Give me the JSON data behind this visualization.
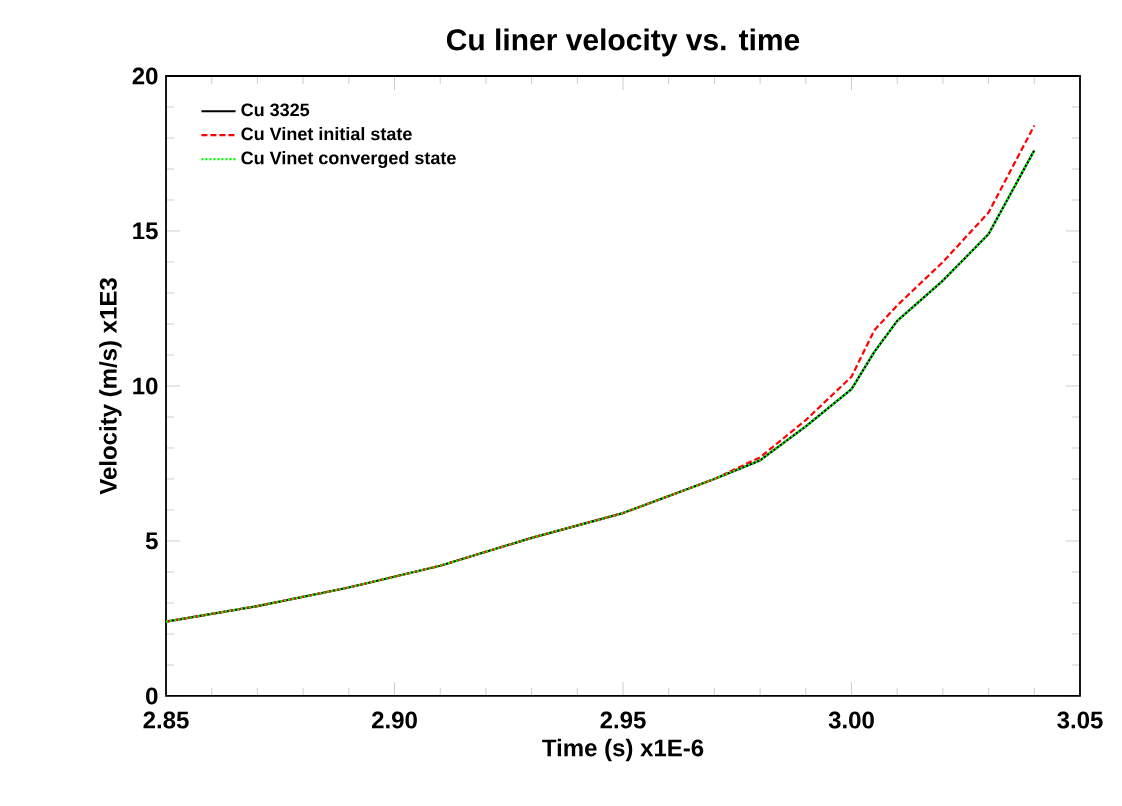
{
  "chart_data": {
    "type": "line",
    "title": "Cu liner velocity vs. time",
    "xlabel": "Time  (s) x1E-6",
    "ylabel": "Velocity  (m/s) x1E3",
    "xlim": [
      2.85,
      3.05
    ],
    "ylim": [
      0,
      20
    ],
    "xticks": [
      {
        "value": 2.85,
        "label": "2.85"
      },
      {
        "value": 2.9,
        "label": "2.90"
      },
      {
        "value": 2.95,
        "label": "2.95"
      },
      {
        "value": 3.0,
        "label": "3.00"
      },
      {
        "value": 3.05,
        "label": "3.05"
      }
    ],
    "yticks": [
      0,
      5,
      10,
      15,
      20
    ],
    "legend": "top left",
    "grid": false,
    "marker": "none",
    "series": [
      {
        "name": "Cu 3325",
        "color": "#000000",
        "line_style": "solid",
        "x": [
          2.85,
          2.87,
          2.89,
          2.91,
          2.93,
          2.95,
          2.97,
          2.98,
          2.99,
          3.0,
          3.005,
          3.01,
          3.02,
          3.03,
          3.04
        ],
        "values": [
          2.4,
          2.9,
          3.5,
          4.2,
          5.1,
          5.9,
          7.0,
          7.6,
          8.7,
          9.9,
          11.1,
          12.1,
          13.4,
          14.9,
          17.6
        ]
      },
      {
        "name": "Cu Vinet initial state",
        "color": "#ff0000",
        "line_style": "dashed",
        "x": [
          2.85,
          2.87,
          2.89,
          2.91,
          2.93,
          2.95,
          2.97,
          2.98,
          2.99,
          3.0,
          3.005,
          3.01,
          3.02,
          3.03,
          3.04
        ],
        "values": [
          2.4,
          2.9,
          3.5,
          4.2,
          5.1,
          5.9,
          7.0,
          7.7,
          8.9,
          10.3,
          11.8,
          12.6,
          14.0,
          15.6,
          18.4
        ]
      },
      {
        "name": "Cu Vinet converged state",
        "color": "#00ff00",
        "line_style": "dotted",
        "x": [
          2.85,
          2.87,
          2.89,
          2.91,
          2.93,
          2.95,
          2.97,
          2.98,
          2.99,
          3.0,
          3.005,
          3.01,
          3.02,
          3.03,
          3.04
        ],
        "values": [
          2.4,
          2.9,
          3.5,
          4.2,
          5.1,
          5.9,
          7.0,
          7.6,
          8.7,
          9.9,
          11.1,
          12.1,
          13.4,
          14.9,
          17.6
        ]
      }
    ]
  }
}
